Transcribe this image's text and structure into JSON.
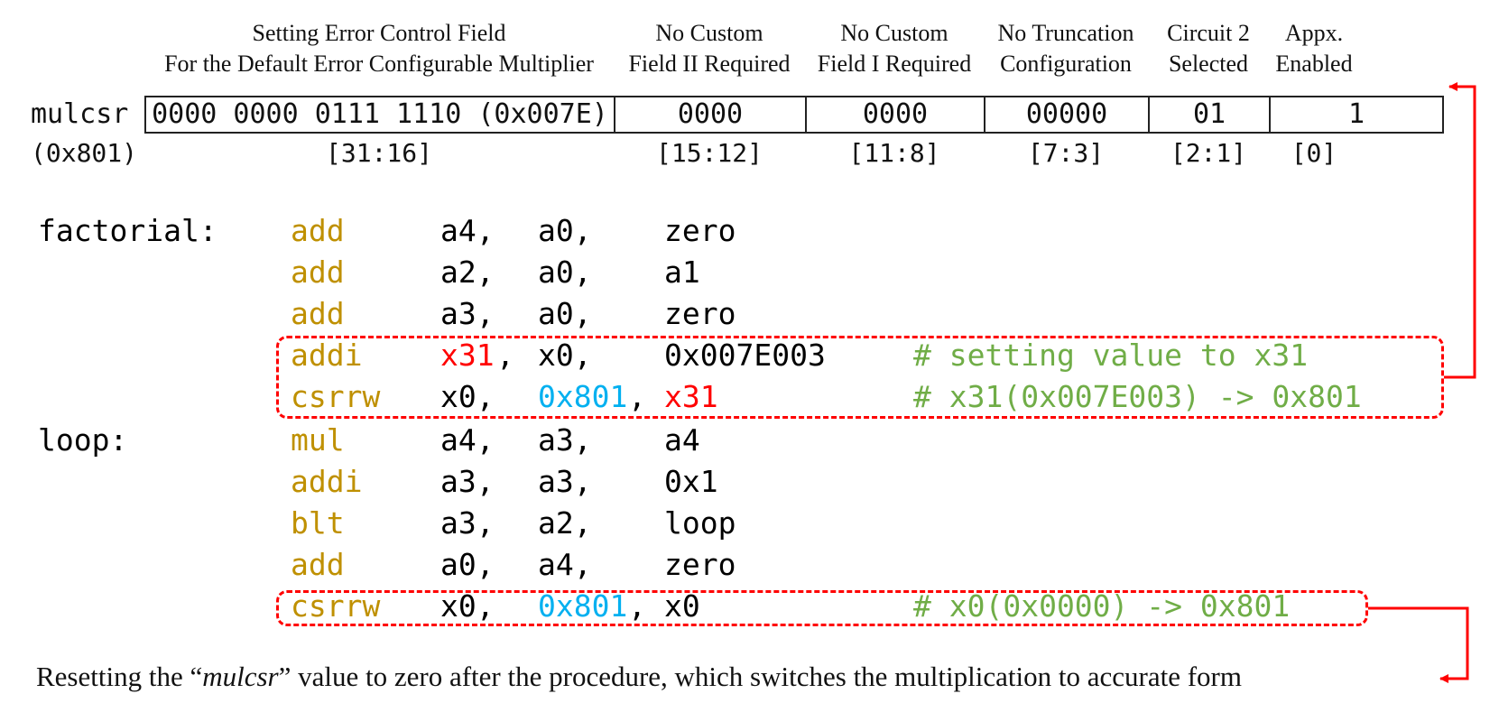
{
  "header_labels": [
    {
      "line1": "Setting Error Control Field",
      "line2": "For the Default Error Configurable Multiplier"
    },
    {
      "line1": "No Custom",
      "line2": "Field II Required"
    },
    {
      "line1": "No Custom",
      "line2": "Field I Required"
    },
    {
      "line1": "No Truncation",
      "line2": "Configuration"
    },
    {
      "line1": "Circuit 2",
      "line2": "Selected"
    },
    {
      "line1": "Appx.",
      "line2": "Enabled"
    }
  ],
  "register": {
    "name": "mulcsr",
    "address": "(0x801)",
    "fields": [
      {
        "value": "0000 0000 0111 1110 (0x007E)",
        "range": "[31:16]"
      },
      {
        "value": "0000",
        "range": "[15:12]"
      },
      {
        "value": "0000",
        "range": "[11:8]"
      },
      {
        "value": "00000",
        "range": "[7:3]"
      },
      {
        "value": "01",
        "range": "[2:1]"
      },
      {
        "value": "1",
        "range": "[0]"
      }
    ]
  },
  "code": [
    {
      "label": "factorial:",
      "op": "add",
      "a1": "a4,",
      "a2": "a0,",
      "a3": "zero",
      "comment": ""
    },
    {
      "label": "",
      "op": "add",
      "a1": "a2,",
      "a2": "a0,",
      "a3": "a1",
      "comment": ""
    },
    {
      "label": "",
      "op": "add",
      "a1": "a3,",
      "a2": "a0,",
      "a3": "zero",
      "comment": ""
    },
    {
      "label": "",
      "op": "addi",
      "a1": "x31",
      "a1_tail": ",",
      "a2": "x0,",
      "a3": "0x007E003",
      "comment": "# setting value to x31"
    },
    {
      "label": "",
      "op": "csrrw",
      "a1": "x0,",
      "a2": "0x801",
      "a2_tail": ",",
      "a3": "x31",
      "comment": "# x31(0x007E003) -> 0x801"
    },
    {
      "label": "loop:",
      "op": "mul",
      "a1": "a4,",
      "a2": "a3,",
      "a3": "a4",
      "comment": ""
    },
    {
      "label": "",
      "op": "addi",
      "a1": "a3,",
      "a2": "a3,",
      "a3": "0x1",
      "comment": ""
    },
    {
      "label": "",
      "op": "blt",
      "a1": "a3,",
      "a2": "a2,",
      "a3": "loop",
      "comment": ""
    },
    {
      "label": "",
      "op": "add",
      "a1": "a0,",
      "a2": "a4,",
      "a3": "zero",
      "comment": ""
    },
    {
      "label": "",
      "op": "csrrw",
      "a1": "x0,",
      "a2": "0x801",
      "a2_tail": ",",
      "a3": "x0",
      "comment": "# x0(0x0000) -> 0x801"
    }
  ],
  "note": {
    "prefix": "Resetting the “",
    "italic": "mulcsr",
    "suffix": "” value to zero after the procedure, which switches the multiplication to accurate form"
  },
  "colors": {
    "mnemonic": "#BF9000",
    "register_highlight": "#FF0000",
    "address_highlight": "#00B0F0",
    "comment": "#70AD47",
    "callout": "#FF0000"
  }
}
